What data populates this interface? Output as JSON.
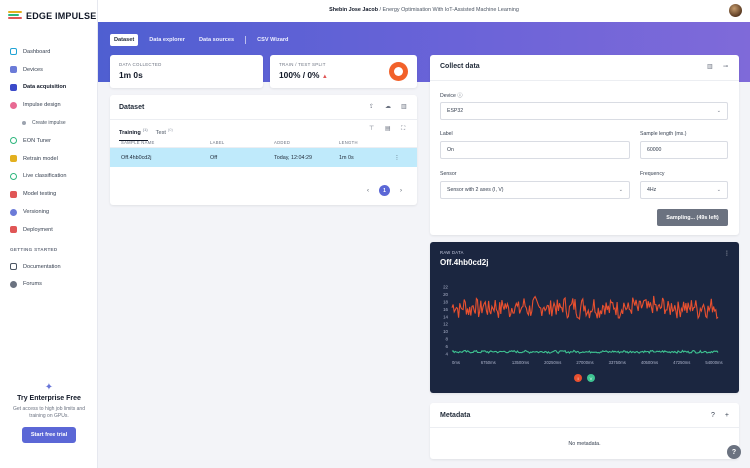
{
  "app": {
    "name": "EDGE IMPULSE"
  },
  "breadcrumb": {
    "user": "Shebin Jose Jacob",
    "separator": "/",
    "project": "Energy Optimisation With IoT-Assisted Machine Learning"
  },
  "sidebar": {
    "items": [
      {
        "label": "Dashboard",
        "icon": "dashboard-icon",
        "color": "#21a3d5"
      },
      {
        "label": "Devices",
        "icon": "devices-icon",
        "color": "#6b7bd8"
      },
      {
        "label": "Data acquisition",
        "icon": "data-acquisition-icon",
        "color": "#3b4ac9"
      },
      {
        "label": "Impulse design",
        "icon": "impulse-design-icon",
        "color": "#e86a93"
      },
      {
        "label": "Create impulse",
        "icon": "create-impulse-icon",
        "color": "#9ca3af"
      },
      {
        "label": "EON Tuner",
        "icon": "eon-tuner-icon",
        "color": "#2eb67d"
      },
      {
        "label": "Retrain model",
        "icon": "retrain-model-icon",
        "color": "#e3b01f"
      },
      {
        "label": "Live classification",
        "icon": "live-classification-icon",
        "color": "#2eb67d"
      },
      {
        "label": "Model testing",
        "icon": "model-testing-icon",
        "color": "#e05656"
      },
      {
        "label": "Versioning",
        "icon": "versioning-icon",
        "color": "#6b7bd8"
      },
      {
        "label": "Deployment",
        "icon": "deployment-icon",
        "color": "#e05656"
      }
    ],
    "section_label": "GETTING STARTED",
    "getting_started": [
      {
        "label": "Documentation",
        "icon": "documentation-icon"
      },
      {
        "label": "Forums",
        "icon": "forums-icon"
      }
    ],
    "enterprise": {
      "title": "Try Enterprise Free",
      "description": "Get access to high job limits and training on GPUs.",
      "button": "Start free trial"
    }
  },
  "tabs": [
    "Dataset",
    "Data explorer",
    "Data sources",
    "CSV Wizard"
  ],
  "stats": {
    "collected_label": "DATA COLLECTED",
    "collected_value": "1m 0s",
    "split_label": "TRAIN / TEST SPLIT",
    "split_value": "100% / 0%",
    "split_warning": "▲"
  },
  "dataset": {
    "title": "Dataset",
    "subtabs": [
      {
        "label": "Training",
        "count": "(1)"
      },
      {
        "label": "Test",
        "count": "(0)"
      }
    ],
    "columns": [
      "SAMPLE NAME",
      "LABEL",
      "ADDED",
      "LENGTH"
    ],
    "rows": [
      {
        "name": "Off.4hb0cd2j",
        "label": "Off",
        "added": "Today, 12:04:29",
        "length": "1m 0s"
      }
    ],
    "pager": {
      "prev": "‹",
      "current": "1",
      "next": "›"
    }
  },
  "collect": {
    "title": "Collect data",
    "device_label": "Device",
    "device_value": "ESP32",
    "label_label": "Label",
    "label_value": "On",
    "length_label": "Sample length (ms.)",
    "length_value": "60000",
    "sensor_label": "Sensor",
    "sensor_value": "Sensor with 2 axes (I, V)",
    "frequency_label": "Frequency",
    "frequency_value": "4Hz",
    "sample_button": "Sampling... (49s left)"
  },
  "raw": {
    "label": "RAW DATA",
    "title": "Off.4hb0cd2j",
    "menu": "⋮",
    "legend": [
      "I",
      "V"
    ]
  },
  "chart_data": {
    "type": "line",
    "xlabel": "",
    "ylabel": "",
    "x_ticks": [
      "0ms",
      "6750ms",
      "13500ms",
      "20250ms",
      "27000ms",
      "33750ms",
      "40500ms",
      "47250ms",
      "54000ms"
    ],
    "y_ticks": [
      4,
      6,
      8,
      10,
      12,
      14,
      16,
      18,
      20,
      22
    ],
    "xlim": [
      0,
      60000
    ],
    "ylim": [
      4,
      22
    ],
    "series": [
      {
        "name": "I",
        "color": "#e8502f",
        "mean": 16.5,
        "spread": 2.5
      },
      {
        "name": "V",
        "color": "#3ec492",
        "mean": 4.6,
        "spread": 0.3
      }
    ]
  },
  "metadata": {
    "title": "Metadata",
    "empty": "No metadata."
  },
  "help": {
    "label": "?"
  }
}
